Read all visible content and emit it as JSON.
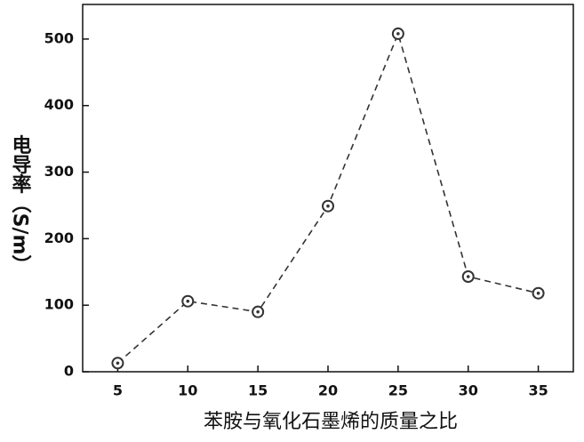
{
  "chart_data": {
    "type": "line",
    "xlabel": "苯胺与氧化石墨烯的质量之比",
    "ylabel": "电导率（S/m）",
    "x": [
      5,
      10,
      15,
      20,
      25,
      30,
      35
    ],
    "series": [
      {
        "name": "电导率",
        "color": "#333333",
        "values": [
          13,
          106,
          90,
          249,
          508,
          143,
          118
        ]
      }
    ],
    "xlim": [
      2.5,
      37.5
    ],
    "xticks": [
      5,
      10,
      15,
      20,
      25,
      30,
      35
    ],
    "ylim": [
      0,
      552
    ],
    "yticks": [
      0,
      100,
      200,
      300,
      400,
      500
    ],
    "grid": false,
    "legend": false
  }
}
